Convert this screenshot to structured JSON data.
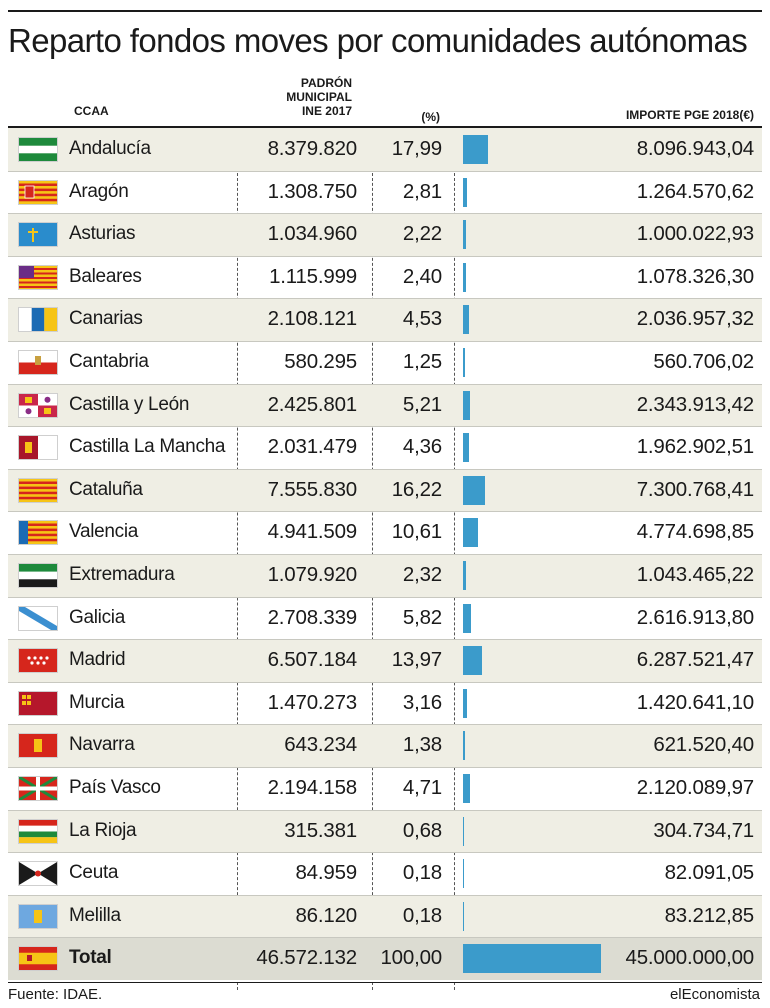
{
  "title": "Reparto fondos moves por comunidades autónomas",
  "headers": {
    "ccaa": "CCAA",
    "padron": [
      "PADRÓN",
      "MUNICIPAL",
      "INE 2017"
    ],
    "pct": "(%)",
    "importe": "IMPORTE PGE 2018(€)"
  },
  "footer": {
    "source": "Fuente: IDAE.",
    "brand": "elEconomista"
  },
  "colors": {
    "bar": "#3b9bcb",
    "shade": "#efeee4",
    "total_shade": "#dcdcd2"
  },
  "rows": [
    {
      "name": "Andalucía",
      "padron": "8.379.820",
      "pct": "17,99",
      "importe": "8.096.943,04",
      "flag": "andalucia-flag"
    },
    {
      "name": "Aragón",
      "padron": "1.308.750",
      "pct": "2,81",
      "importe": "1.264.570,62",
      "flag": "aragon-flag"
    },
    {
      "name": "Asturias",
      "padron": "1.034.960",
      "pct": "2,22",
      "importe": "1.000.022,93",
      "flag": "asturias-flag"
    },
    {
      "name": "Baleares",
      "padron": "1.115.999",
      "pct": "2,40",
      "importe": "1.078.326,30",
      "flag": "baleares-flag"
    },
    {
      "name": "Canarias",
      "padron": "2.108.121",
      "pct": "4,53",
      "importe": "2.036.957,32",
      "flag": "canarias-flag"
    },
    {
      "name": "Cantabria",
      "padron": "580.295",
      "pct": "1,25",
      "importe": "560.706,02",
      "flag": "cantabria-flag"
    },
    {
      "name": "Castilla y León",
      "padron": "2.425.801",
      "pct": "5,21",
      "importe": "2.343.913,42",
      "flag": "castilla-leon-flag"
    },
    {
      "name": "Castilla La Mancha",
      "padron": "2.031.479",
      "pct": "4,36",
      "importe": "1.962.902,51",
      "flag": "castilla-la-mancha-flag"
    },
    {
      "name": "Cataluña",
      "padron": "7.555.830",
      "pct": "16,22",
      "importe": "7.300.768,41",
      "flag": "cataluna-flag"
    },
    {
      "name": "Valencia",
      "padron": "4.941.509",
      "pct": "10,61",
      "importe": "4.774.698,85",
      "flag": "valencia-flag"
    },
    {
      "name": "Extremadura",
      "padron": "1.079.920",
      "pct": "2,32",
      "importe": "1.043.465,22",
      "flag": "extremadura-flag"
    },
    {
      "name": "Galicia",
      "padron": "2.708.339",
      "pct": "5,82",
      "importe": "2.616.913,80",
      "flag": "galicia-flag"
    },
    {
      "name": "Madrid",
      "padron": "6.507.184",
      "pct": "13,97",
      "importe": "6.287.521,47",
      "flag": "madrid-flag"
    },
    {
      "name": "Murcia",
      "padron": "1.470.273",
      "pct": "3,16",
      "importe": "1.420.641,10",
      "flag": "murcia-flag"
    },
    {
      "name": "Navarra",
      "padron": "643.234",
      "pct": "1,38",
      "importe": "621.520,40",
      "flag": "navarra-flag"
    },
    {
      "name": "País Vasco",
      "padron": "2.194.158",
      "pct": "4,71",
      "importe": "2.120.089,97",
      "flag": "pais-vasco-flag"
    },
    {
      "name": "La Rioja",
      "padron": "315.381",
      "pct": "0,68",
      "importe": "304.734,71",
      "flag": "la-rioja-flag"
    },
    {
      "name": "Ceuta",
      "padron": "84.959",
      "pct": "0,18",
      "importe": "82.091,05",
      "flag": "ceuta-flag"
    },
    {
      "name": "Melilla",
      "padron": "86.120",
      "pct": "0,18",
      "importe": "83.212,85",
      "flag": "melilla-flag"
    }
  ],
  "total": {
    "name": "Total",
    "padron": "46.572.132",
    "pct": "100,00",
    "importe": "45.000.000,00",
    "flag": "spain-flag"
  },
  "chart_data": {
    "type": "bar",
    "orientation": "horizontal",
    "categories": [
      "Andalucía",
      "Aragón",
      "Asturias",
      "Baleares",
      "Canarias",
      "Cantabria",
      "Castilla y León",
      "Castilla La Mancha",
      "Cataluña",
      "Valencia",
      "Extremadura",
      "Galicia",
      "Madrid",
      "Murcia",
      "Navarra",
      "País Vasco",
      "La Rioja",
      "Ceuta",
      "Melilla",
      "Total"
    ],
    "values": [
      8096943.04,
      1264570.62,
      1000022.93,
      1078326.3,
      2036957.32,
      560706.02,
      2343913.42,
      1962902.51,
      7300768.41,
      4774698.85,
      1043465.22,
      2616913.8,
      6287521.47,
      1420641.1,
      621520.4,
      2120089.97,
      304734.71,
      82091.05,
      83212.85,
      45000000.0
    ],
    "title": "Reparto fondos moves por comunidades autónomas",
    "xlim": [
      0,
      45000000
    ]
  }
}
